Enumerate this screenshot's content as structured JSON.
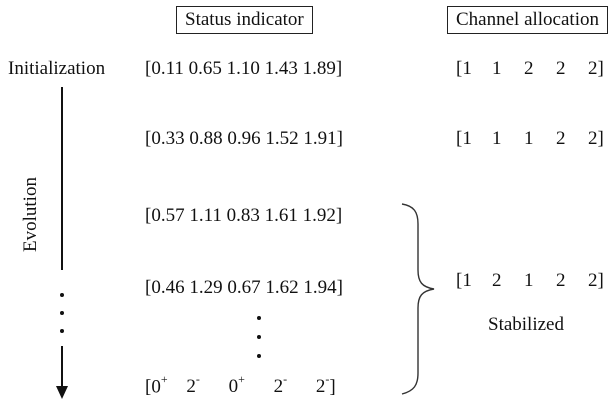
{
  "headers": {
    "status_indicator": "Status indicator",
    "channel_allocation": "Channel allocation"
  },
  "side_labels": {
    "initialization": "Initialization",
    "evolution": "Evolution"
  },
  "status_rows": [
    "[0.11 0.65 1.10 1.43 1.89]",
    "[0.33 0.88 0.96 1.52 1.91]",
    "[0.57 1.11 0.83 1.61 1.92]",
    "[0.46 1.29 0.67 1.62 1.94]"
  ],
  "final_status": {
    "open": "[0",
    "v1_sup": "+",
    "v2": "2",
    "v2_sup": "-",
    "v3": "0",
    "v3_sup": "+",
    "v4": "2",
    "v4_sup": "-",
    "v5": "2",
    "v5_sup": "-",
    "close": "]"
  },
  "allocation_rows": [
    [
      "[1",
      "1",
      "2",
      "2",
      "2]"
    ],
    [
      "[1",
      "1",
      "1",
      "2",
      "2]"
    ],
    [
      "[1",
      "2",
      "1",
      "2",
      "2]"
    ]
  ],
  "stabilized_label": "Stabilized"
}
